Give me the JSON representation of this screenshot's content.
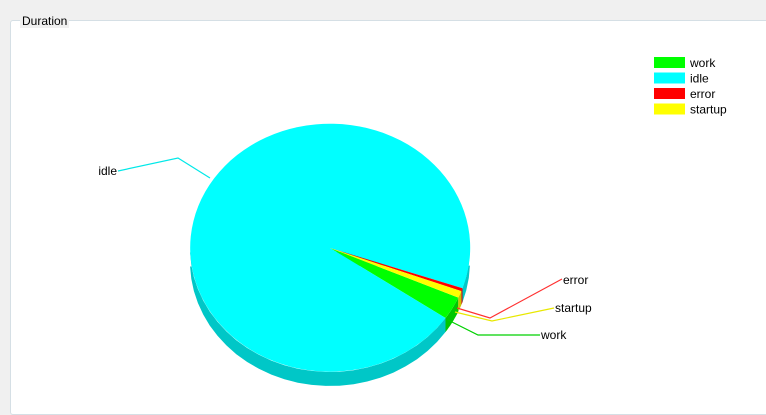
{
  "group": {
    "title": "Duration"
  },
  "chart_data": {
    "type": "pie",
    "title": "",
    "categories": [
      "work",
      "idle",
      "error",
      "startup"
    ],
    "values": [
      3.0,
      95.7,
      0.4,
      0.9
    ],
    "colors": [
      "#00ff00",
      "#00ffff",
      "#ff0000",
      "#ffff00"
    ],
    "legend": {
      "placement": "top-right",
      "entries": [
        "work",
        "idle",
        "error",
        "startup"
      ]
    },
    "labels": [
      "work",
      "idle",
      "error",
      "startup"
    ]
  }
}
